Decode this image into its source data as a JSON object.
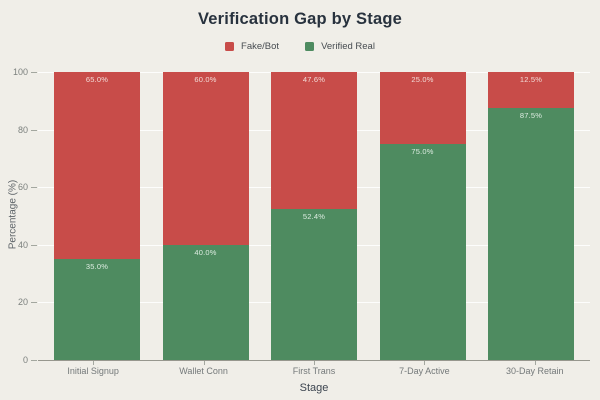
{
  "chart_data": {
    "type": "bar",
    "variant": "stacked-vertical",
    "title": "Verification Gap by Stage",
    "xlabel": "Stage",
    "ylabel": "Percentage (%)",
    "ylim": [
      0,
      100
    ],
    "yticks": [
      0,
      20,
      40,
      60,
      80,
      100
    ],
    "grid": true,
    "legend_position": "top-center",
    "categories": [
      "Initial Signup",
      "Wallet Conn",
      "First Trans",
      "7-Day Active",
      "30-Day Retain"
    ],
    "series": [
      {
        "name": "Fake/Bot",
        "color": "#c84c49",
        "values": [
          65.0,
          60.0,
          47.6,
          25.0,
          12.5
        ]
      },
      {
        "name": "Verified Real",
        "color": "#4e8b60",
        "values": [
          35.0,
          40.0,
          52.4,
          75.0,
          87.5
        ]
      }
    ],
    "value_label_format": "{v}%"
  },
  "colors": {
    "background": "#f0eee8",
    "title_text": "#28323e",
    "axis_line": "#97978e",
    "tick_text": "#7c817e",
    "gridline": "rgba(255,255,255,0.85)"
  }
}
